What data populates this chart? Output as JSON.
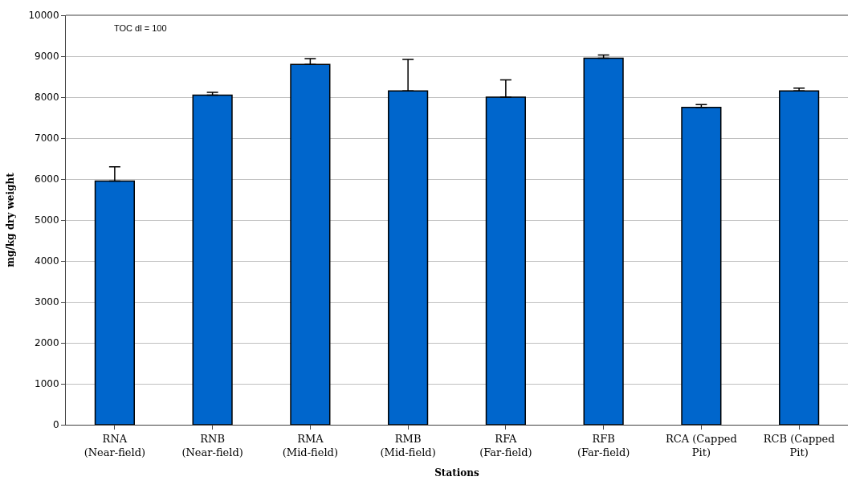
{
  "chart_data": {
    "type": "bar",
    "xlabel": "Stations",
    "ylabel": "mg/kg dry weight",
    "categories": [
      "RNA (Near-field)",
      "RNB (Near-field)",
      "RMA (Mid-field)",
      "RMB (Mid-field)",
      "RFA (Far-field)",
      "RFB (Far-field)",
      "RCA (Capped Pit)",
      "RCB (Capped Pit)"
    ],
    "values": [
      5950,
      8050,
      8800,
      8150,
      8000,
      8950,
      7750,
      8150
    ],
    "errors": [
      [
        5950,
        6300
      ],
      [
        8050,
        8120
      ],
      [
        8800,
        8940
      ],
      [
        8150,
        8920
      ],
      [
        8000,
        8420
      ],
      [
        8950,
        9030
      ],
      [
        7750,
        7820
      ],
      [
        8150,
        8220
      ]
    ],
    "color": "#0066cc",
    "ylim": [
      0,
      10000
    ],
    "yticks": [
      0,
      1000,
      2000,
      3000,
      4000,
      5000,
      6000,
      7000,
      8000,
      9000,
      10000
    ],
    "grid": "y",
    "annotations": [
      "TOC dl = 100"
    ]
  }
}
